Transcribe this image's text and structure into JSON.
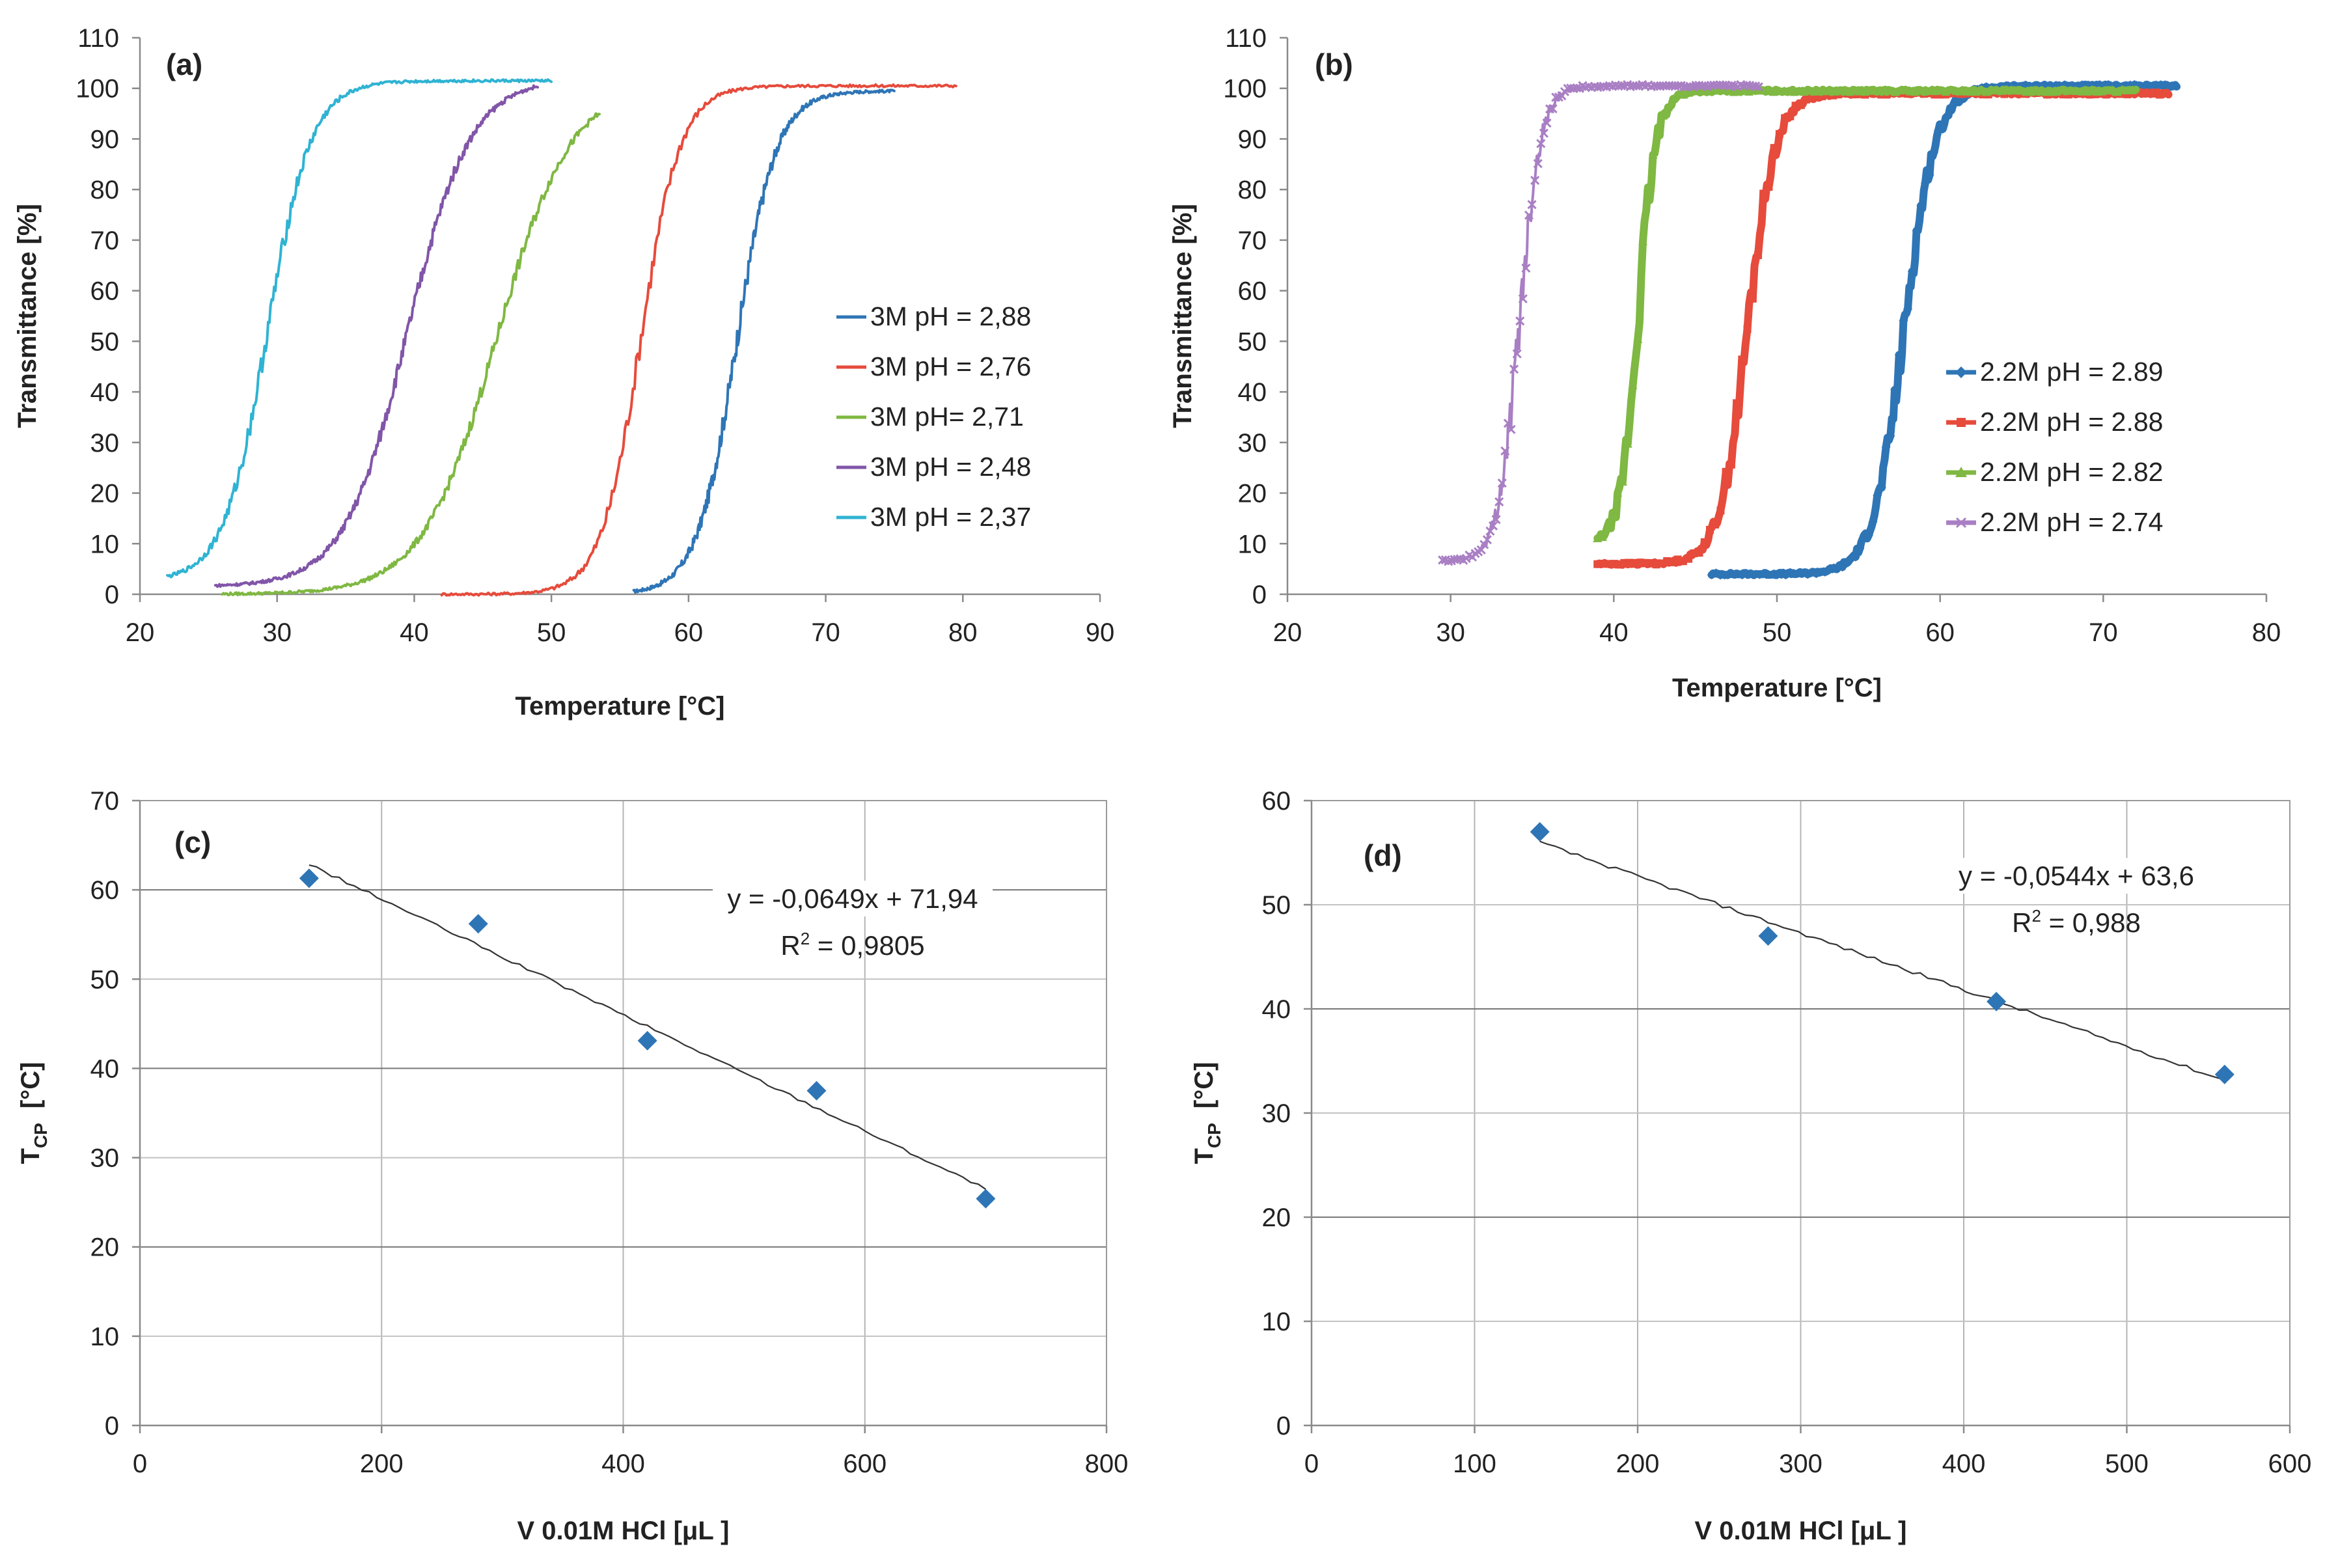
{
  "chart_data": [
    {
      "panel": "(a)",
      "type": "line",
      "title": "",
      "xlabel": "Temperature [°C]",
      "ylabel": "Transmittance [%]",
      "xlim": [
        20,
        90
      ],
      "ylim": [
        0,
        110
      ],
      "xticks": [
        20,
        30,
        40,
        50,
        60,
        70,
        80,
        90
      ],
      "yticks": [
        0,
        10,
        20,
        30,
        40,
        50,
        60,
        70,
        80,
        90,
        100,
        110
      ],
      "grid": false,
      "legend_position": "right",
      "series": [
        {
          "name": "3M pH = 2,88",
          "color": "#2e75b6",
          "marker": "none",
          "x0": 56,
          "x1": 75,
          "mid": 63.5,
          "width": 1.45,
          "low": 0,
          "high": 99.5
        },
        {
          "name": "3M pH = 2,76",
          "color": "#e64b3c",
          "marker": "none",
          "x0": 42,
          "x1": 79.5,
          "mid": 56.5,
          "width": 1.45,
          "low": 0,
          "high": 100.5
        },
        {
          "name": "3M pH= 2,71",
          "color": "#7fb842",
          "marker": "none",
          "x0": 26,
          "x1": 53.5,
          "mid": 46,
          "width": 2.7,
          "low": 0,
          "high": 101
        },
        {
          "name": "3M pH = 2,48",
          "color": "#8155a8",
          "marker": "none",
          "x0": 25.5,
          "x1": 49,
          "mid": 39.5,
          "width": 2.3,
          "low": 1.5,
          "high": 102
        },
        {
          "name": "3M pH = 2,37",
          "color": "#2fb3d3",
          "marker": "none",
          "x0": 22,
          "x1": 50,
          "mid": 29.3,
          "width": 1.6,
          "low": 2.5,
          "high": 101.5
        }
      ]
    },
    {
      "panel": "(b)",
      "type": "line",
      "title": "",
      "xlabel": "Temperature [°C]",
      "ylabel": "Transmittance [%]",
      "xlim": [
        20,
        80
      ],
      "ylim": [
        0,
        110
      ],
      "xticks": [
        20,
        30,
        40,
        50,
        60,
        70,
        80
      ],
      "yticks": [
        0,
        10,
        20,
        30,
        40,
        50,
        60,
        70,
        80,
        90,
        100,
        110
      ],
      "grid": false,
      "legend_position": "right",
      "series": [
        {
          "name": "2.2M pH = 2.89",
          "color": "#2e75b6",
          "marker": "diamond",
          "x0": 46,
          "x1": 74.5,
          "mid": 57.8,
          "width": 0.95,
          "low": 4,
          "high": 100.5
        },
        {
          "name": "2.2M pH = 2.88",
          "color": "#e64b3c",
          "marker": "square",
          "x0": 39,
          "x1": 74,
          "mid": 48.2,
          "width": 0.85,
          "low": 6,
          "high": 99
        },
        {
          "name": "2.2M pH = 2.82",
          "color": "#7fb842",
          "marker": "triangle",
          "x0": 39,
          "x1": 72,
          "mid": 41.5,
          "width": 0.55,
          "low": 10,
          "high": 99.5
        },
        {
          "name": "2.2M pH = 2.74",
          "color": "#a97fc4",
          "marker": "x",
          "x0": 29.5,
          "x1": 49,
          "mid": 34.2,
          "width": 0.65,
          "low": 6.5,
          "high": 100.5
        }
      ]
    },
    {
      "panel": "(c)",
      "type": "scatter",
      "xlabel": "V 0.01M HCl [μL ]",
      "ylabel_main": "T",
      "ylabel_sub": "CP",
      "ylabel_unit": "[°C]",
      "xlim": [
        0,
        800
      ],
      "ylim": [
        0,
        70
      ],
      "xticks": [
        0,
        200,
        400,
        600,
        800
      ],
      "yticks": [
        0,
        10,
        20,
        30,
        40,
        50,
        60,
        70
      ],
      "xgrid_step": 200,
      "ygrid_step": 10,
      "grid": true,
      "points": [
        [
          140,
          61.3
        ],
        [
          280,
          56.2
        ],
        [
          420,
          43.1
        ],
        [
          560,
          37.5
        ],
        [
          700,
          25.4
        ]
      ],
      "marker_color": "#2e75b6",
      "trendline": {
        "slope": -0.0649,
        "intercept": 71.94,
        "x_range": [
          140,
          700
        ]
      },
      "equation": "y = -0,0649x + 71,94",
      "r2_label": "R",
      "r2_exp": "2",
      "r2_value": " = 0,9805"
    },
    {
      "panel": "(d)",
      "type": "scatter",
      "xlabel": "V 0.01M HCl [μL ]",
      "ylabel_main": "T",
      "ylabel_sub": "CP",
      "ylabel_unit": "[°C]",
      "xlim": [
        0,
        600
      ],
      "ylim": [
        0,
        60
      ],
      "xticks": [
        0,
        100,
        200,
        300,
        400,
        500,
        600
      ],
      "yticks": [
        0,
        10,
        20,
        30,
        40,
        50,
        60
      ],
      "xgrid_step": 100,
      "ygrid_step": 10,
      "grid": true,
      "points": [
        [
          140,
          57.0
        ],
        [
          280,
          47.0
        ],
        [
          420,
          40.7
        ],
        [
          560,
          33.7
        ]
      ],
      "marker_color": "#2e75b6",
      "trendline": {
        "slope": -0.0544,
        "intercept": 63.6,
        "x_range": [
          140,
          560
        ]
      },
      "equation": "y = -0,0544x + 63,6",
      "r2_label": "R",
      "r2_exp": "2",
      "r2_value": " = 0,988"
    }
  ]
}
